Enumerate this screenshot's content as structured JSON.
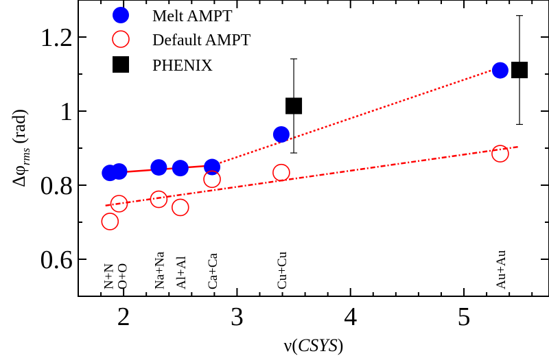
{
  "chart_data": {
    "type": "scatter",
    "xlabel": {
      "symbol": "ν",
      "arg": "CSYS"
    },
    "ylabel": {
      "symbol": "Δφ",
      "subscript": "rms",
      "unit": "(rad)"
    },
    "xlim": [
      1.6,
      5.75
    ],
    "ylim": [
      0.5,
      1.3
    ],
    "x_ticks": [
      2,
      3,
      4,
      5
    ],
    "x_tick_labels": [
      "2",
      "3",
      "4",
      "5"
    ],
    "y_ticks": [
      0.6,
      0.8,
      1.0,
      1.2
    ],
    "y_tick_labels": [
      "0.6",
      "0.8",
      "1",
      "1.2"
    ],
    "legend_position": "top-left",
    "series": [
      {
        "name": "Melt AMPT",
        "marker": "filled-circle",
        "color": "#0000ff",
        "points": [
          {
            "x": 1.88,
            "y": 0.833
          },
          {
            "x": 1.96,
            "y": 0.837
          },
          {
            "x": 2.31,
            "y": 0.848
          },
          {
            "x": 2.5,
            "y": 0.846
          },
          {
            "x": 2.78,
            "y": 0.849
          },
          {
            "x": 3.39,
            "y": 0.937
          },
          {
            "x": 5.32,
            "y": 1.11
          }
        ]
      },
      {
        "name": "Default AMPT",
        "marker": "open-circle",
        "color": "#ff0000",
        "points": [
          {
            "x": 1.88,
            "y": 0.702
          },
          {
            "x": 1.96,
            "y": 0.75
          },
          {
            "x": 2.31,
            "y": 0.762
          },
          {
            "x": 2.5,
            "y": 0.74
          },
          {
            "x": 2.78,
            "y": 0.816
          },
          {
            "x": 3.39,
            "y": 0.834
          },
          {
            "x": 5.32,
            "y": 0.885
          }
        ]
      },
      {
        "name": "PHENIX",
        "marker": "filled-square",
        "color": "#000000",
        "points": [
          {
            "x": 3.5,
            "y": 1.014,
            "err": 0.127
          },
          {
            "x": 5.49,
            "y": 1.111,
            "err": 0.147
          }
        ]
      }
    ],
    "fit_lines": [
      {
        "style": "solid",
        "color": "#ff0000",
        "from": [
          1.84,
          0.832
        ],
        "to": [
          2.78,
          0.853
        ]
      },
      {
        "style": "dotted",
        "color": "#ff0000",
        "from": [
          2.78,
          0.853
        ],
        "to": [
          5.32,
          1.118
        ]
      },
      {
        "style": "dash-dot",
        "color": "#ff0000",
        "from": [
          1.84,
          0.745
        ],
        "to": [
          5.49,
          0.904
        ]
      }
    ],
    "system_labels": [
      {
        "text": "N+N",
        "x": 1.88
      },
      {
        "text": "O+O",
        "x": 1.96
      },
      {
        "text": "Na+Na",
        "x": 2.31
      },
      {
        "text": "Al+Al",
        "x": 2.5
      },
      {
        "text": "Ca+Ca",
        "x": 2.78
      },
      {
        "text": "Cu+Cu",
        "x": 3.39
      },
      {
        "text": "Au+Au",
        "x": 5.32
      }
    ]
  }
}
